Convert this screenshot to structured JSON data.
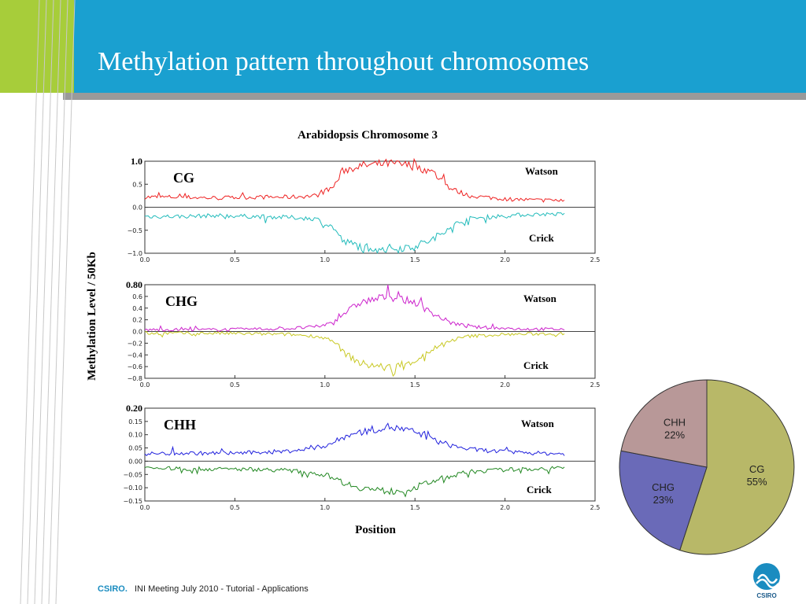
{
  "slide": {
    "title": "Methylation pattern throughout chromosomes",
    "footer": {
      "brand": "CSIRO.",
      "text": "INI Meeting July 2010 - Tutorial - Applications"
    },
    "logo_text": "CSIRO",
    "colors": {
      "header": "#1aa0d0",
      "accent": "#a7cd3a",
      "rule": "#9a9a9a"
    }
  },
  "chart_data": [
    {
      "type": "line",
      "title": "Arabidopsis Chromosome 3",
      "xlabel": "Position",
      "ylabel": "Methylation Level / 50Kb",
      "panels": [
        {
          "label": "CG",
          "top_tick": "1.0",
          "xlim": [
            0,
            2.5
          ],
          "ylim": [
            -1.0,
            1.0
          ],
          "xticks": [
            "0.0",
            "0.5",
            "1.0",
            "1.5",
            "2.0",
            "2.5"
          ],
          "yticks": [
            "0.5",
            "0.0",
            "−0.5",
            "−1.0"
          ],
          "ytick_values": [
            0.5,
            0.0,
            -0.5,
            -1.0
          ],
          "series": [
            {
              "name": "Watson",
              "color": "#ee2222",
              "x": [
                0.0,
                0.2,
                0.4,
                0.6,
                0.8,
                0.95,
                1.05,
                1.1,
                1.2,
                1.35,
                1.5,
                1.6,
                1.7,
                1.8,
                2.0,
                2.2,
                2.33
              ],
              "values": [
                0.22,
                0.22,
                0.2,
                0.22,
                0.22,
                0.25,
                0.45,
                0.8,
                0.9,
                0.95,
                0.9,
                0.75,
                0.4,
                0.25,
                0.18,
                0.15,
                0.15
              ]
            },
            {
              "name": "Crick",
              "color": "#22bbbb",
              "x": [
                0.0,
                0.2,
                0.4,
                0.6,
                0.8,
                0.95,
                1.05,
                1.1,
                1.2,
                1.35,
                1.5,
                1.6,
                1.7,
                1.8,
                2.0,
                2.2,
                2.33
              ],
              "values": [
                -0.2,
                -0.2,
                -0.18,
                -0.2,
                -0.22,
                -0.25,
                -0.45,
                -0.75,
                -0.85,
                -0.9,
                -0.85,
                -0.7,
                -0.4,
                -0.25,
                -0.18,
                -0.15,
                -0.15
              ]
            }
          ]
        },
        {
          "label": "CHG",
          "top_tick": "0.80",
          "xlim": [
            0,
            2.5
          ],
          "ylim": [
            -0.8,
            0.8
          ],
          "xticks": [
            "0.0",
            "0.5",
            "1.0",
            "1.5",
            "2.0",
            "2.5"
          ],
          "yticks": [
            "0.6",
            "0.4",
            "0.2",
            "0.0",
            "−0.2",
            "−0.4",
            "−0.6",
            "−0.8"
          ],
          "ytick_values": [
            0.6,
            0.4,
            0.2,
            0.0,
            -0.2,
            -0.4,
            -0.6,
            -0.8
          ],
          "series": [
            {
              "name": "Watson",
              "color": "#cc22cc",
              "x": [
                0.0,
                0.2,
                0.4,
                0.6,
                0.8,
                0.95,
                1.05,
                1.1,
                1.2,
                1.35,
                1.5,
                1.6,
                1.7,
                1.8,
                2.0,
                2.2,
                2.33
              ],
              "values": [
                0.03,
                0.03,
                0.03,
                0.04,
                0.05,
                0.08,
                0.15,
                0.3,
                0.5,
                0.6,
                0.5,
                0.3,
                0.15,
                0.08,
                0.05,
                0.04,
                0.04
              ]
            },
            {
              "name": "Crick",
              "color": "#c8c822",
              "x": [
                0.0,
                0.2,
                0.4,
                0.6,
                0.8,
                0.95,
                1.05,
                1.1,
                1.2,
                1.35,
                1.5,
                1.6,
                1.7,
                1.8,
                2.0,
                2.2,
                2.33
              ],
              "values": [
                -0.03,
                -0.03,
                -0.03,
                -0.04,
                -0.05,
                -0.08,
                -0.15,
                -0.35,
                -0.55,
                -0.62,
                -0.5,
                -0.3,
                -0.15,
                -0.08,
                -0.05,
                -0.04,
                -0.04
              ]
            }
          ]
        },
        {
          "label": "CHH",
          "top_tick": "0.20",
          "xlim": [
            0,
            2.5
          ],
          "ylim": [
            -0.15,
            0.2
          ],
          "xticks": [
            "0.0",
            "0.5",
            "1.0",
            "1.5",
            "2.0",
            "2.5"
          ],
          "yticks": [
            "0.15",
            "0.10",
            "0.05",
            "0.00",
            "−0.05",
            "−0.10",
            "−0.15"
          ],
          "ytick_values": [
            0.15,
            0.1,
            0.05,
            0.0,
            -0.05,
            -0.1,
            -0.15
          ],
          "series": [
            {
              "name": "Watson",
              "color": "#2222dd",
              "x": [
                0.0,
                0.2,
                0.4,
                0.6,
                0.8,
                0.95,
                1.05,
                1.1,
                1.2,
                1.35,
                1.5,
                1.6,
                1.7,
                1.8,
                2.0,
                2.2,
                2.33
              ],
              "values": [
                0.028,
                0.03,
                0.03,
                0.032,
                0.038,
                0.05,
                0.07,
                0.09,
                0.11,
                0.13,
                0.11,
                0.08,
                0.06,
                0.045,
                0.035,
                0.03,
                0.028
              ]
            },
            {
              "name": "Crick",
              "color": "#228822",
              "x": [
                0.0,
                0.2,
                0.4,
                0.6,
                0.8,
                0.95,
                1.05,
                1.1,
                1.2,
                1.35,
                1.5,
                1.6,
                1.7,
                1.8,
                2.0,
                2.2,
                2.33
              ],
              "values": [
                -0.025,
                -0.028,
                -0.03,
                -0.03,
                -0.035,
                -0.045,
                -0.06,
                -0.08,
                -0.1,
                -0.115,
                -0.1,
                -0.075,
                -0.055,
                -0.04,
                -0.032,
                -0.028,
                -0.025
              ]
            }
          ]
        }
      ]
    },
    {
      "type": "pie",
      "slices": [
        {
          "label": "CG",
          "value": 55,
          "text": "55%",
          "color": "#b8b868"
        },
        {
          "label": "CHG",
          "value": 23,
          "text": "23%",
          "color": "#6a6ab8"
        },
        {
          "label": "CHH",
          "value": 22,
          "text": "22%",
          "color": "#b89898"
        }
      ]
    }
  ]
}
